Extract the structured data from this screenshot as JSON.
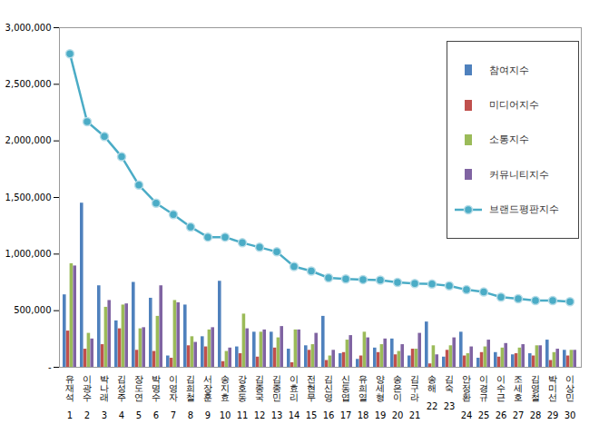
{
  "chart_data": {
    "type": "bar",
    "categories": [
      "유재석",
      "이광수",
      "박나래",
      "김성주",
      "장도연",
      "박명수",
      "이영자",
      "김희철",
      "서장훈",
      "송지효",
      "강호동",
      "김종국",
      "김종민",
      "이효리",
      "전현무",
      "김신영",
      "신동엽",
      "유희열",
      "양세형",
      "송은이",
      "김구라",
      "송해",
      "김숙",
      "안정환",
      "이경규",
      "이수근",
      "조세호",
      "김영철",
      "박미선",
      "이상민"
    ],
    "ranks": [
      1,
      2,
      3,
      4,
      5,
      6,
      7,
      8,
      9,
      10,
      11,
      12,
      13,
      14,
      15,
      16,
      17,
      18,
      19,
      20,
      21,
      22,
      23,
      24,
      25,
      26,
      27,
      28,
      29,
      30
    ],
    "series": [
      {
        "name": "참여지수",
        "type": "bar",
        "color": "#4f81bd",
        "values": [
          640000,
          1450000,
          720000,
          410000,
          750000,
          610000,
          100000,
          550000,
          270000,
          760000,
          180000,
          310000,
          310000,
          160000,
          190000,
          450000,
          120000,
          70000,
          170000,
          250000,
          100000,
          400000,
          90000,
          310000,
          80000,
          130000,
          110000,
          120000,
          240000,
          150000
        ]
      },
      {
        "name": "미디어지수",
        "type": "bar",
        "color": "#c0504d",
        "values": [
          320000,
          160000,
          200000,
          340000,
          150000,
          140000,
          80000,
          190000,
          180000,
          50000,
          120000,
          90000,
          170000,
          40000,
          150000,
          60000,
          130000,
          100000,
          130000,
          110000,
          160000,
          30000,
          150000,
          100000,
          130000,
          90000,
          120000,
          100000,
          60000,
          100000
        ]
      },
      {
        "name": "소통지수",
        "type": "bar",
        "color": "#9bbb59",
        "values": [
          915000,
          300000,
          530000,
          550000,
          340000,
          450000,
          590000,
          270000,
          330000,
          140000,
          470000,
          310000,
          260000,
          330000,
          200000,
          100000,
          240000,
          310000,
          200000,
          140000,
          160000,
          190000,
          190000,
          120000,
          180000,
          170000,
          170000,
          190000,
          130000,
          150000
        ]
      },
      {
        "name": "커뮤니티지수",
        "type": "bar",
        "color": "#8064a2",
        "values": [
          895000,
          250000,
          590000,
          560000,
          350000,
          720000,
          570000,
          220000,
          350000,
          170000,
          340000,
          330000,
          360000,
          330000,
          300000,
          150000,
          280000,
          260000,
          250000,
          200000,
          300000,
          110000,
          260000,
          180000,
          240000,
          210000,
          200000,
          190000,
          160000,
          150000
        ]
      },
      {
        "name": "브랜드평판지수",
        "type": "line",
        "marker": "circle",
        "color": "#4bacc6",
        "values": [
          2770000,
          2170000,
          2040000,
          1860000,
          1610000,
          1450000,
          1350000,
          1240000,
          1150000,
          1150000,
          1100000,
          1060000,
          1020000,
          890000,
          850000,
          790000,
          780000,
          775000,
          770000,
          750000,
          740000,
          735000,
          720000,
          685000,
          665000,
          620000,
          605000,
          590000,
          590000,
          580000
        ]
      }
    ],
    "ylim": [
      0,
      3000000
    ],
    "yticks": [
      {
        "value": 0,
        "label": "-"
      },
      {
        "value": 500000,
        "label": "500,000"
      },
      {
        "value": 1000000,
        "label": "1,000,000"
      },
      {
        "value": 1500000,
        "label": "1,500,000"
      },
      {
        "value": 2000000,
        "label": "2,000,000"
      },
      {
        "value": 2500000,
        "label": "2,500,000"
      },
      {
        "value": 3000000,
        "label": "3,000,000"
      }
    ],
    "grid": false,
    "legend": "top-right"
  }
}
